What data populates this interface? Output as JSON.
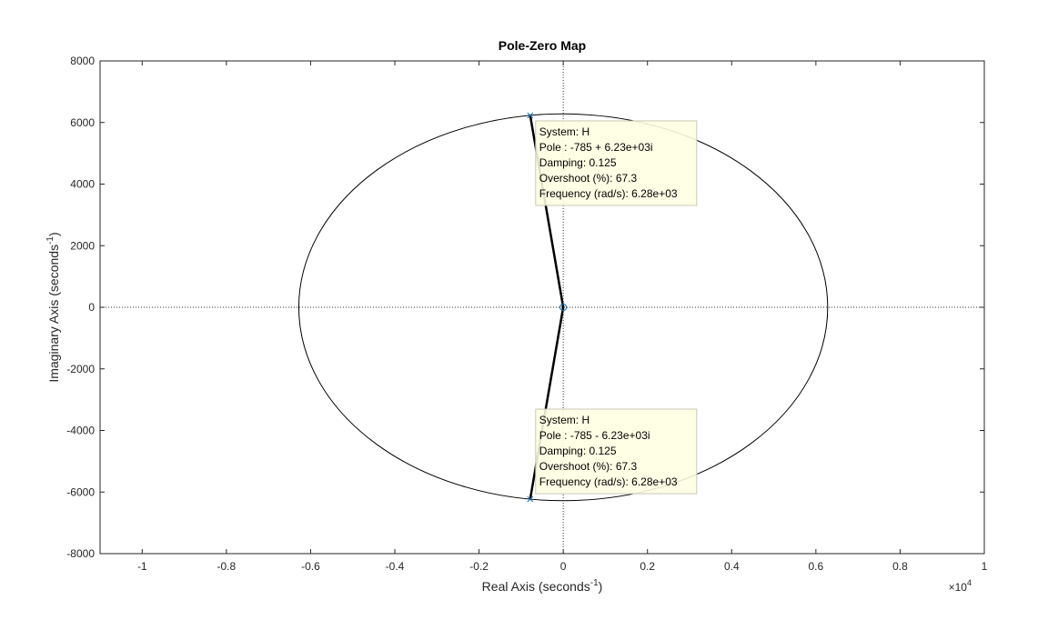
{
  "chart_data": {
    "type": "scatter",
    "title": "Pole-Zero Map",
    "xlabel": "Real Axis (seconds",
    "xlabel_sup": "-1",
    "xlabel_suffix": ")",
    "ylabel": "Imaginary Axis (seconds",
    "ylabel_sup": "-1",
    "ylabel_suffix": ")",
    "x_exponent_base": "×10",
    "x_exponent_power": "4",
    "xlim": [
      -11000,
      10000
    ],
    "ylim": [
      -8000,
      8000
    ],
    "x_ticks": [
      -10000,
      -8000,
      -6000,
      -4000,
      -2000,
      0,
      2000,
      4000,
      6000,
      8000,
      10000
    ],
    "x_tick_labels": [
      "-1",
      "-0.8",
      "-0.6",
      "-0.4",
      "-0.2",
      "0",
      "0.2",
      "0.4",
      "0.6",
      "0.8",
      "1"
    ],
    "y_ticks": [
      -8000,
      -6000,
      -4000,
      -2000,
      0,
      2000,
      4000,
      6000,
      8000
    ],
    "y_tick_labels": [
      "-8000",
      "-6000",
      "-4000",
      "-2000",
      "0",
      "2000",
      "4000",
      "6000",
      "8000"
    ],
    "grid": false,
    "reference_lines": {
      "x": 0,
      "y": 0,
      "style": "dotted"
    },
    "poles": [
      {
        "real": -785,
        "imag": 6230
      },
      {
        "real": -785,
        "imag": -6230
      }
    ],
    "zeros": [
      {
        "real": 0,
        "imag": 0
      }
    ],
    "natural_frequency_circle": {
      "radius": 6280
    },
    "damping_line": {
      "damping": 0.125
    },
    "datatips": [
      {
        "anchor": {
          "real": -785,
          "imag": 6230
        },
        "lines": [
          "System: H",
          "Pole : -785 + 6.23e+03i",
          "Damping: 0.125",
          "Overshoot (%): 67.3",
          "Frequency (rad/s): 6.28e+03"
        ]
      },
      {
        "anchor": {
          "real": -785,
          "imag": -6230
        },
        "lines": [
          "System: H",
          "Pole : -785 - 6.23e+03i",
          "Damping: 0.125",
          "Overshoot (%): 67.3",
          "Frequency (rad/s): 6.28e+03"
        ]
      }
    ],
    "colors": {
      "axes": "#262626",
      "curves": "#000000",
      "zero_marker": "#0072bd",
      "pole_marker": "#0072bd",
      "datatip_bg": "#ffffe1",
      "datatip_border": "#c8c8b4"
    }
  }
}
